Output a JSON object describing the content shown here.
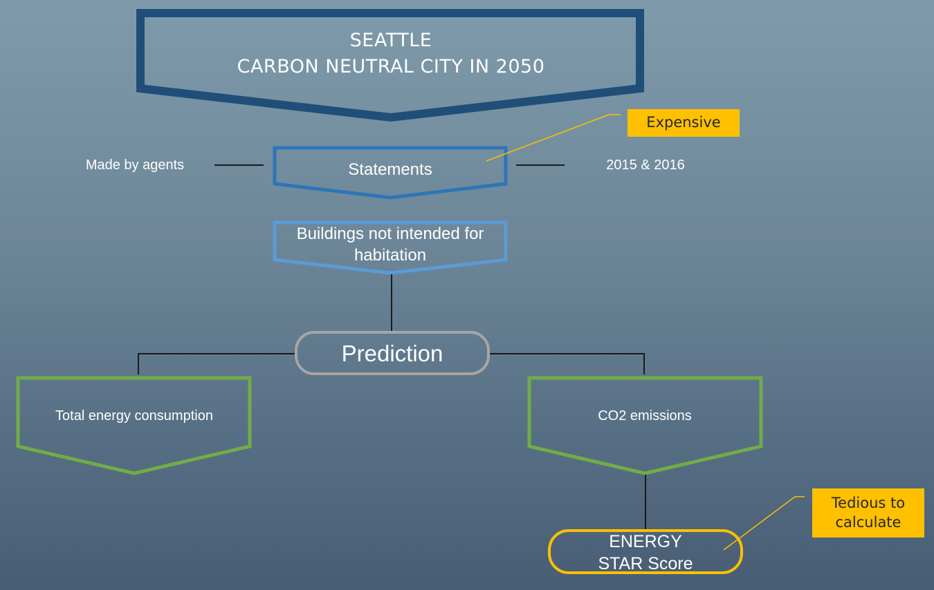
{
  "title": "SEATTLE\nCARBON NEUTRAL CITY IN 2050",
  "statements": "Statements",
  "statements_left_note": "Made by agents",
  "statements_right_note": "2015 & 2016",
  "filter": "Buildings not intended for habitation",
  "prediction": "Prediction",
  "target_left": "Total energy consumption",
  "target_right": "CO2 emissions",
  "energy_star": "ENERGY\nSTAR Score",
  "callout_expensive": "Expensive",
  "callout_tedious": "Tedious to\ncalculate",
  "colors": {
    "title_border": "#1f4e79",
    "statements_border": "#2e75b6",
    "filter_border": "#5b9bd5",
    "prediction_border": "#a6a6a6",
    "target_border": "#70ad47",
    "energy_star_border": "#ffc000",
    "callout_fill": "#ffc000",
    "connector": "#1a1a1a"
  }
}
